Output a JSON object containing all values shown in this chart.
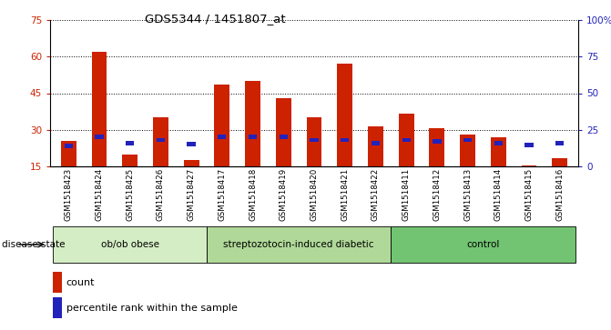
{
  "title": "GDS5344 / 1451807_at",
  "samples": [
    "GSM1518423",
    "GSM1518424",
    "GSM1518425",
    "GSM1518426",
    "GSM1518427",
    "GSM1518417",
    "GSM1518418",
    "GSM1518419",
    "GSM1518420",
    "GSM1518421",
    "GSM1518422",
    "GSM1518411",
    "GSM1518412",
    "GSM1518413",
    "GSM1518414",
    "GSM1518415",
    "GSM1518416"
  ],
  "counts": [
    25.5,
    62.0,
    20.0,
    35.0,
    17.5,
    48.5,
    50.0,
    43.0,
    35.0,
    57.0,
    31.5,
    36.5,
    30.5,
    28.0,
    27.0,
    15.5,
    18.5
  ],
  "percentile_ranks": [
    14.0,
    20.0,
    16.0,
    18.0,
    15.0,
    20.0,
    20.0,
    20.0,
    18.0,
    18.0,
    16.0,
    18.0,
    17.0,
    18.0,
    16.0,
    14.5,
    16.0
  ],
  "groups": [
    {
      "label": "ob/ob obese",
      "start": 0,
      "end": 4
    },
    {
      "label": "streptozotocin-induced diabetic",
      "start": 5,
      "end": 10
    },
    {
      "label": "control",
      "start": 11,
      "end": 16
    }
  ],
  "group_colors": [
    "#d4edc4",
    "#b0d898",
    "#72c472"
  ],
  "bar_color": "#cc2200",
  "blue_color": "#2222bb",
  "ymin": 15,
  "ymax": 75,
  "y_ticks_left": [
    15,
    30,
    45,
    60,
    75
  ],
  "y_ticks_right_pct": [
    0,
    25,
    50,
    75,
    100
  ],
  "xtick_bg": "#cccccc",
  "disease_label": "disease state",
  "legend_count": "count",
  "legend_percentile": "percentile rank within the sample"
}
